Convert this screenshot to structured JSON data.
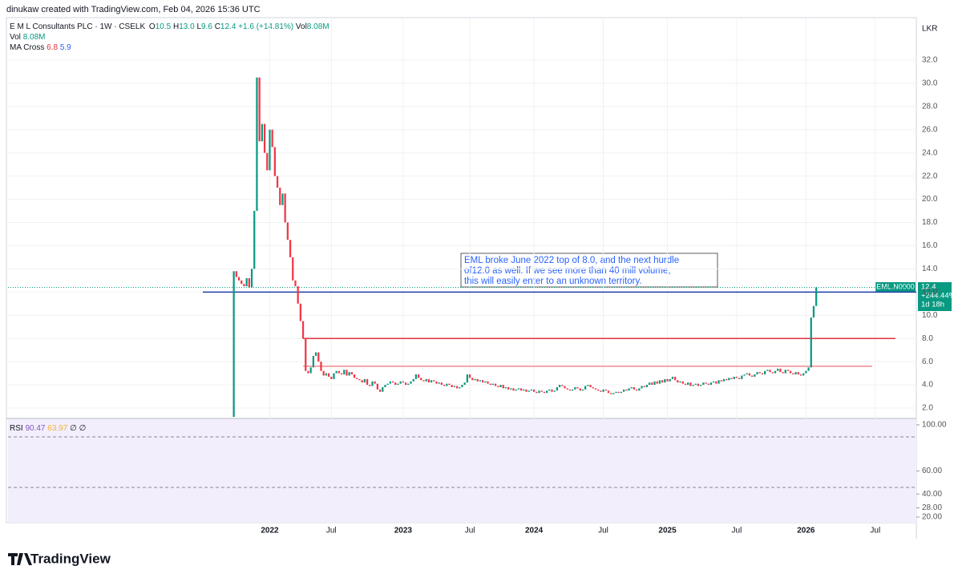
{
  "header": {
    "credit": "dinukaw created with TradingView.com, Feb 04, 2026 15:36 UTC",
    "brand": "TradingView"
  },
  "legend": {
    "symbol": "E M L Consultants PLC · 1W · CSELK",
    "o": "O",
    "o_val": "10.5",
    "h": "H",
    "h_val": "13.0",
    "l": "L",
    "l_val": "9.6",
    "c": "C",
    "c_val": "12.4",
    "change": "+1.6 (+14.81%)",
    "vol": "Vol",
    "vol_val": "8.08M",
    "vol_line": "Vol",
    "vol_line_val": "8.08M",
    "ma": "MA Cross",
    "ma_fast": "6.8",
    "ma_slow": "5.9"
  },
  "chart_data": {
    "type": "candlestick",
    "currency": "LKR",
    "up_color": "#089981",
    "down_color": "#f23645",
    "xlim": [
      -88,
      266
    ],
    "xticks": [
      {
        "value": 14,
        "label": "2022"
      },
      {
        "value": 38,
        "label": "Jul"
      },
      {
        "value": 66,
        "label": "2023"
      },
      {
        "value": 92,
        "label": "Jul"
      },
      {
        "value": 117,
        "label": "2024"
      },
      {
        "value": 144,
        "label": "Jul"
      },
      {
        "value": 169,
        "label": "2025"
      },
      {
        "value": 196,
        "label": "Jul"
      },
      {
        "value": 223,
        "label": "2026"
      },
      {
        "value": 250,
        "label": "Jul"
      }
    ],
    "ylim": [
      1.24,
      35.66
    ],
    "yticks": [
      {
        "value": 2,
        "label": "2.0"
      },
      {
        "value": 4,
        "label": "4.0"
      },
      {
        "value": 6,
        "label": "6.0"
      },
      {
        "value": 8,
        "label": "8.0"
      },
      {
        "value": 10,
        "label": "10.0"
      },
      {
        "value": 12,
        "label": "12.0"
      },
      {
        "value": 14,
        "label": "14.0"
      },
      {
        "value": 16,
        "label": "16.0"
      },
      {
        "value": 18,
        "label": "18.0"
      },
      {
        "value": 20,
        "label": "20.0"
      },
      {
        "value": 22,
        "label": "22.0"
      },
      {
        "value": 24,
        "label": "24.0"
      },
      {
        "value": 26,
        "label": "26.0"
      },
      {
        "value": 28,
        "label": "28.0"
      },
      {
        "value": 30,
        "label": "30.0"
      },
      {
        "value": 32,
        "label": "32.0"
      }
    ],
    "close": [
      13.8,
      13.3,
      13.0,
      12.7,
      12.5,
      13.2,
      12.4,
      14.0,
      19.0,
      30.5,
      25.0,
      26.5,
      24.0,
      22.5,
      26.0,
      24.5,
      22.0,
      21.0,
      19.5,
      20.5,
      18.0,
      16.5,
      15.0,
      13.0,
      12.5,
      11.0,
      9.5,
      8.0,
      5.2,
      5.0,
      5.5,
      6.5,
      6.8,
      6.0,
      5.2,
      4.8,
      5.0,
      4.7,
      4.5,
      5.0,
      5.2,
      5.0,
      4.9,
      5.3,
      4.8,
      5.1,
      4.9,
      4.6,
      4.5,
      4.4,
      4.2,
      4.5,
      4.0,
      3.9,
      4.3,
      4.1,
      3.6,
      3.4,
      3.8,
      4.0,
      4.1,
      4.3,
      4.2,
      4.0,
      4.1,
      4.3,
      4.2,
      4.0,
      4.1,
      4.3,
      4.5,
      4.9,
      4.6,
      4.4,
      4.3,
      4.5,
      4.2,
      4.4,
      4.3,
      4.1,
      4.2,
      4.0,
      3.9,
      4.1,
      4.0,
      3.8,
      3.9,
      3.7,
      3.8,
      4.0,
      4.2,
      4.9,
      4.6,
      4.4,
      4.5,
      4.3,
      4.4,
      4.2,
      4.3,
      4.1,
      4.0,
      4.1,
      3.9,
      3.8,
      4.0,
      3.7,
      3.8,
      3.6,
      3.7,
      3.5,
      3.6,
      3.7,
      3.5,
      3.6,
      3.4,
      3.5,
      3.6,
      3.4,
      3.3,
      3.5,
      3.4,
      3.3,
      3.5,
      3.6,
      3.4,
      3.5,
      3.8,
      4.0,
      3.9,
      3.7,
      3.6,
      3.5,
      3.6,
      3.8,
      3.7,
      3.5,
      3.6,
      3.9,
      4.0,
      3.8,
      3.7,
      3.6,
      3.5,
      3.4,
      3.6,
      3.5,
      3.3,
      3.2,
      3.3,
      3.4,
      3.3,
      3.4,
      3.6,
      3.5,
      3.7,
      3.8,
      3.6,
      3.5,
      3.7,
      3.9,
      3.8,
      4.0,
      4.2,
      4.0,
      4.3,
      4.1,
      4.4,
      4.2,
      4.5,
      4.3,
      4.5,
      4.7,
      4.4,
      4.2,
      4.3,
      4.1,
      4.0,
      4.2,
      3.9,
      4.0,
      4.1,
      3.9,
      4.0,
      4.2,
      4.1,
      4.0,
      4.2,
      4.3,
      4.1,
      4.4,
      4.3,
      4.5,
      4.4,
      4.6,
      4.5,
      4.7,
      4.6,
      4.5,
      4.8,
      4.9,
      5.0,
      4.8,
      4.7,
      4.9,
      5.1,
      5.0,
      4.9,
      5.2,
      5.3,
      5.1,
      5.0,
      5.2,
      5.4,
      5.1,
      5.0,
      5.3,
      5.2,
      5.0,
      4.9,
      5.1,
      4.9,
      4.8,
      5.0,
      5.2,
      5.5,
      9.8,
      10.8,
      12.4
    ],
    "levels": [
      {
        "value": 12,
        "color": "#1e3fa8"
      },
      {
        "value": 8,
        "color": "#e0323c"
      },
      {
        "value": 5.6,
        "color": "#f08a8f"
      }
    ],
    "annotation": [
      "EML broke June 2022 top of 8.0, and the next hurdle",
      "of12.0 as well. If we see more than 40 mill volume,",
      "this will easily enter to an unknown territory."
    ],
    "last": {
      "symbol": "EML.N0000",
      "price": "12.4",
      "change": "+244.44%",
      "countdown": "1d 18h"
    },
    "rsi": {
      "label": "RSI",
      "v1": "90.47",
      "v2": "63.97",
      "v3": "∅",
      "v4": "∅",
      "ylim": [
        15.13,
        104.87
      ],
      "yticks": [
        {
          "value": 100,
          "label": "100.00"
        },
        {
          "value": 60,
          "label": "60.00"
        },
        {
          "value": 40,
          "label": "40.00"
        },
        {
          "value": 28,
          "label": "28.00"
        },
        {
          "value": 20,
          "label": "20.00"
        }
      ]
    }
  }
}
